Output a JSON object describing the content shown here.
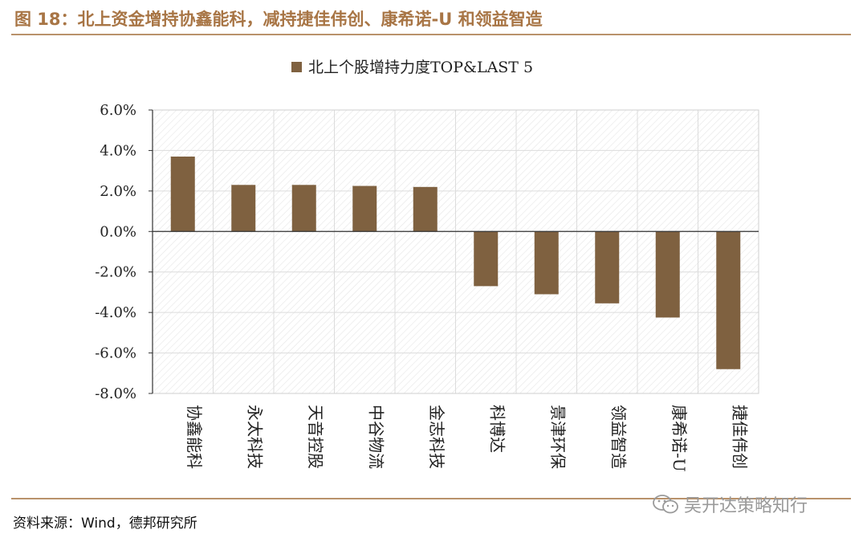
{
  "header": {
    "title": "图 18：北上资金增持协鑫能科，减持捷佳伟创、康希诺-U 和领益智造"
  },
  "footer": {
    "source": "资料来源：Wind，德邦研究所",
    "watermark": "吴开达策略知行",
    "watermark_icon": "wechat-icon"
  },
  "colors": {
    "bar": "#7f6140",
    "accent": "#b9926b",
    "title": "#a87545"
  },
  "chart_data": {
    "type": "bar",
    "legend_label": "北上个股增持力度TOP&LAST 5",
    "legend_position": "top-center",
    "categories": [
      "协鑫能科",
      "永太科技",
      "天音控股",
      "中谷物流",
      "金志科技",
      "科博达",
      "景津环保",
      "领益智造",
      "康希诺-U",
      "捷佳伟创"
    ],
    "values": [
      3.7,
      2.3,
      2.3,
      2.25,
      2.2,
      -2.7,
      -3.1,
      -3.55,
      -4.25,
      -6.8
    ],
    "ylim": [
      -8,
      6
    ],
    "yticks": [
      6,
      4,
      2,
      0,
      -2,
      -4,
      -6,
      -8
    ],
    "ytick_labels": [
      "6.0%",
      "4.0%",
      "2.0%",
      "0.0%",
      "-2.0%",
      "-4.0%",
      "-6.0%",
      "-8.0%"
    ],
    "grid": true,
    "unit": "%"
  }
}
